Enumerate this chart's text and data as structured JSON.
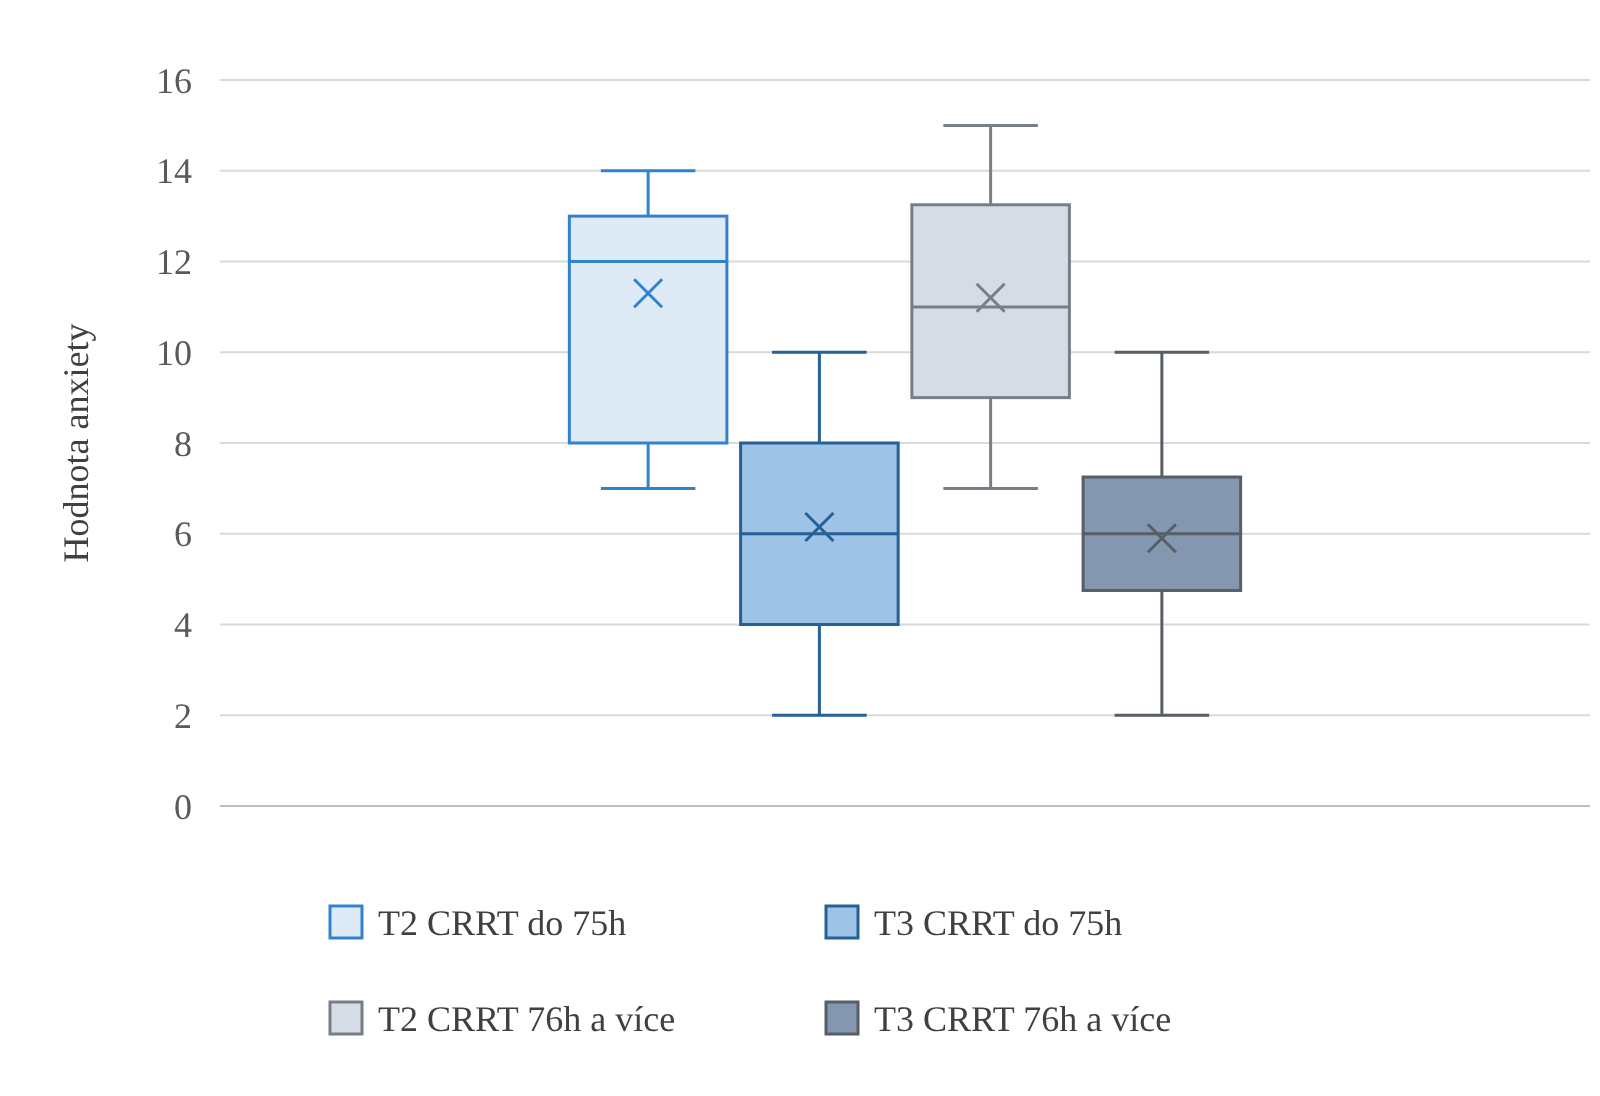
{
  "chart_data": {
    "type": "box",
    "ylabel": "Hodnota anxiety",
    "categories": [
      null
    ],
    "ylim": [
      0,
      16
    ],
    "yticks": [
      0,
      2,
      4,
      6,
      8,
      10,
      12,
      14,
      16
    ],
    "grid": "y",
    "legend": "bottom",
    "marker": "cross",
    "series": [
      {
        "name": "T2 CRRT do 75h",
        "color": "#deebf7",
        "boxes": [
          {
            "low": 7,
            "q1": 8,
            "median": 12,
            "q3": 13,
            "high": 14,
            "mean": 11.3
          }
        ]
      },
      {
        "name": "T3 CRRT do 75h",
        "color": "#9dc3e6",
        "boxes": [
          {
            "low": 2,
            "q1": 4,
            "median": 6,
            "q3": 8,
            "high": 10,
            "mean": 6.15
          }
        ]
      },
      {
        "name": "T2 CRRT 76h a více",
        "color": "#d6dce5",
        "boxes": [
          {
            "low": 7,
            "q1": 9,
            "median": 11,
            "q3": 13.25,
            "high": 15,
            "mean": 11.2
          }
        ]
      },
      {
        "name": "T3 CRRT 76h a více",
        "color": "#8497b0",
        "boxes": [
          {
            "low": 2,
            "q1": 4.75,
            "median": 6,
            "q3": 7.25,
            "high": 10,
            "mean": 5.9
          }
        ]
      }
    ]
  }
}
